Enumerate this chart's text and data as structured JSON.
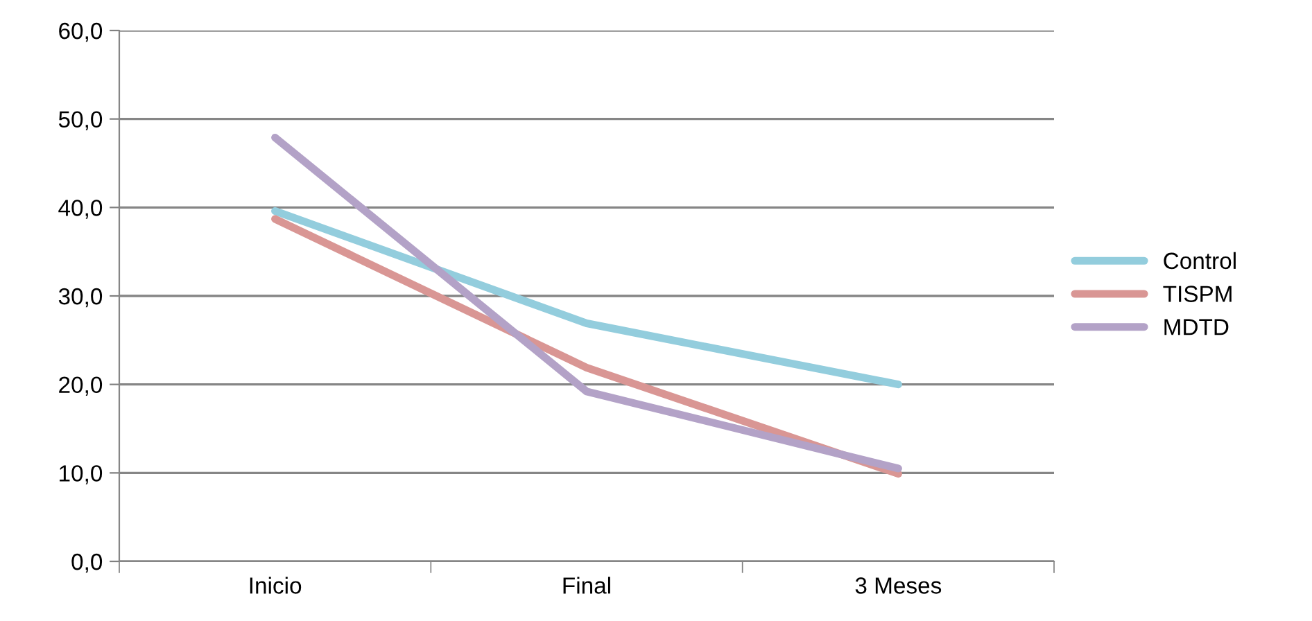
{
  "chart_data": {
    "type": "line",
    "categories": [
      "Inicio",
      "Final",
      "3 Meses"
    ],
    "series": [
      {
        "name": "Control",
        "color": "#93cddd",
        "values": [
          39.6,
          26.9,
          20.0
        ]
      },
      {
        "name": "TISPM",
        "color": "#d99694",
        "values": [
          38.7,
          21.9,
          9.9
        ]
      },
      {
        "name": "MDTD",
        "color": "#b3a2c7",
        "values": [
          47.9,
          19.2,
          10.5
        ]
      }
    ],
    "ylim": [
      0,
      60
    ],
    "yticks": [
      {
        "value": 0,
        "label": "0,0"
      },
      {
        "value": 10,
        "label": "10,0"
      },
      {
        "value": 20,
        "label": "20,0"
      },
      {
        "value": 30,
        "label": "30,0"
      },
      {
        "value": 40,
        "label": "40,0"
      },
      {
        "value": 50,
        "label": "50,0"
      },
      {
        "value": 60,
        "label": "60,0"
      }
    ],
    "grid": "y",
    "legend": "right",
    "marker": "none",
    "line_style": "solid"
  }
}
